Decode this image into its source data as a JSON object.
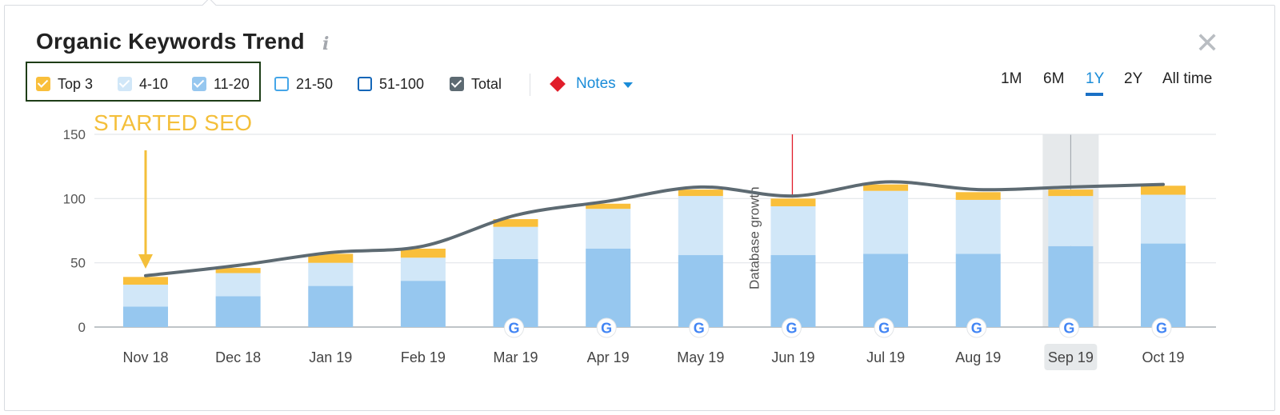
{
  "title": "Organic Keywords Trend",
  "info_glyph": "i",
  "close_glyph": "✕",
  "legend": [
    {
      "label": "Top 3",
      "color": "#f9bf3b",
      "checked": true
    },
    {
      "label": "4-10",
      "color": "#d1e7f8",
      "checked": true
    },
    {
      "label": "11-20",
      "color": "#96c7ef",
      "checked": true
    },
    {
      "label": "21-50",
      "color": "#45a6e8",
      "checked": false
    },
    {
      "label": "51-100",
      "color": "#1466b8",
      "checked": false
    },
    {
      "label": "Total",
      "color": "#5d6a72",
      "checked": true
    }
  ],
  "notes_label": "Notes",
  "periods": [
    "1M",
    "6M",
    "1Y",
    "2Y",
    "All time"
  ],
  "active_period": "1Y",
  "annotation": {
    "text": "STARTED SEO",
    "color": "#f4bf3a"
  },
  "chart_data": {
    "type": "bar",
    "stacked": true,
    "categories": [
      "Nov 18",
      "Dec 18",
      "Jan 19",
      "Feb 19",
      "Mar 19",
      "Apr 19",
      "May 19",
      "Jun 19",
      "Jul 19",
      "Aug 19",
      "Sep 19",
      "Oct 19"
    ],
    "series": [
      {
        "name": "11-20",
        "color": "#96c7ef",
        "values": [
          16,
          24,
          32,
          36,
          53,
          61,
          56,
          56,
          57,
          57,
          63,
          65
        ]
      },
      {
        "name": "4-10",
        "color": "#d1e7f8",
        "values": [
          17,
          18,
          18,
          18,
          25,
          31,
          46,
          38,
          49,
          42,
          39,
          38
        ]
      },
      {
        "name": "Top 3",
        "color": "#f9bf3b",
        "values": [
          6,
          4,
          7,
          7,
          6,
          4,
          5,
          6,
          5,
          6,
          5,
          7
        ]
      }
    ],
    "total_line": {
      "name": "Total",
      "color": "#5d6a72",
      "values": [
        40,
        48,
        58,
        63,
        87,
        98,
        109,
        102,
        113,
        107,
        109,
        111
      ]
    },
    "yticks": [
      0,
      50,
      100,
      150
    ],
    "ylim": [
      0,
      150
    ],
    "google_update_markers": [
      "Mar 19",
      "Apr 19",
      "May 19",
      "Jun 19",
      "Jul 19",
      "Aug 19",
      "Sep 19",
      "Oct 19"
    ],
    "vertical_note": {
      "at": "Jun 19",
      "text": "Database growth"
    },
    "highlighted_category": "Sep 19",
    "grid": true
  }
}
